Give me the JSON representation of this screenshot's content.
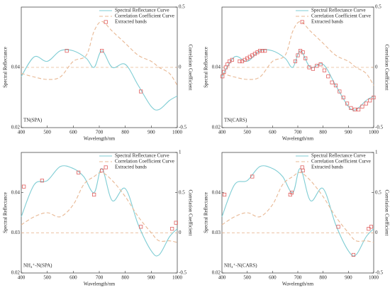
{
  "chart_data": [
    {
      "type": "line",
      "panel_label": "TN(SPA)",
      "xlabel": "Wavelength/nm",
      "ylabel": "Spectral Reflectance",
      "y2label": "Correlation Coefficient",
      "legend": "upper right",
      "x": [
        400,
        450,
        500,
        550,
        600,
        650,
        680,
        710,
        750,
        800,
        850,
        900,
        930,
        970,
        1000
      ],
      "xlim": [
        400,
        1000
      ],
      "xticks": [
        400,
        500,
        600,
        700,
        800,
        900,
        1000
      ],
      "ylim": [
        0.02,
        0.06
      ],
      "yticks": [
        0.02,
        0.04
      ],
      "y2lim": [
        -0.5,
        0.5
      ],
      "y2ticks": [
        -0.5,
        0,
        0.5
      ],
      "series": [
        {
          "name": "Spectral Reflectance Curve",
          "color": "#7fcdd4",
          "values": [
            0.037,
            0.0435,
            0.042,
            0.0455,
            0.0455,
            0.043,
            0.04,
            0.0455,
            0.04,
            0.041,
            0.034,
            0.027,
            0.026,
            0.029,
            0.0305
          ]
        },
        {
          "name": "Correlation Coefficient Curve",
          "color": "#e8b894",
          "axis": "y2",
          "values": [
            -0.05,
            -0.08,
            -0.1,
            -0.08,
            0.05,
            0.1,
            0.3,
            0.38,
            0.3,
            0.2,
            0.1,
            0.05,
            0.0,
            -0.05,
            -0.15
          ]
        },
        {
          "name": "Extracted bands",
          "color": "#e06060",
          "x": [
            575,
            710,
            860
          ],
          "values": [
            0.0455,
            0.0455,
            0.032
          ]
        }
      ]
    },
    {
      "type": "line",
      "panel_label": "TN(CARS)",
      "xlabel": "Wavelength/nm",
      "ylabel": "Spectral Reflectance",
      "y2label": "Correlation Coefficient",
      "legend": "upper right",
      "x": [
        400,
        450,
        500,
        550,
        600,
        650,
        680,
        710,
        750,
        800,
        850,
        900,
        930,
        970,
        1000
      ],
      "xlim": [
        400,
        1000
      ],
      "xticks": [
        400,
        500,
        600,
        700,
        800,
        900,
        1000
      ],
      "ylim": [
        0.02,
        0.06
      ],
      "yticks": [
        0.02,
        0.04
      ],
      "y2lim": [
        -0.5,
        0.5
      ],
      "y2ticks": [
        -0.5,
        0,
        0.5
      ],
      "series": [
        {
          "name": "Spectral Reflectance Curve",
          "color": "#7fcdd4",
          "values": [
            0.037,
            0.0435,
            0.042,
            0.0455,
            0.0455,
            0.043,
            0.04,
            0.0455,
            0.04,
            0.041,
            0.034,
            0.027,
            0.026,
            0.029,
            0.0305
          ]
        },
        {
          "name": "Correlation Coefficient Curve",
          "color": "#e8b894",
          "axis": "y2",
          "values": [
            -0.05,
            -0.08,
            -0.1,
            -0.08,
            0.05,
            0.1,
            0.3,
            0.38,
            0.3,
            0.2,
            0.1,
            0.05,
            0.0,
            -0.05,
            -0.15
          ]
        },
        {
          "name": "Extracted bands",
          "color": "#e06060",
          "x": [
            402,
            408,
            415,
            422,
            430,
            440,
            470,
            480,
            490,
            500,
            510,
            520,
            530,
            540,
            550,
            560,
            570,
            690,
            700,
            710,
            720,
            730,
            745,
            760,
            775,
            790,
            805,
            820,
            835,
            850,
            865,
            880,
            895,
            910,
            925,
            940,
            955,
            970,
            985,
            1000
          ],
          "values": [
            0.037,
            0.0385,
            0.04,
            0.041,
            0.042,
            0.0425,
            0.042,
            0.042,
            0.0425,
            0.043,
            0.0435,
            0.044,
            0.0445,
            0.045,
            0.0455,
            0.0455,
            0.0455,
            0.042,
            0.044,
            0.0455,
            0.045,
            0.043,
            0.04,
            0.0395,
            0.0405,
            0.041,
            0.039,
            0.037,
            0.035,
            0.034,
            0.032,
            0.03,
            0.028,
            0.0265,
            0.026,
            0.026,
            0.027,
            0.028,
            0.029,
            0.03
          ]
        }
      ]
    },
    {
      "type": "line",
      "panel_label": "NH₄⁺-N(SPA)",
      "xlabel": "Wavelength/nm",
      "ylabel": "Spectral Reflectance",
      "y2label": "Correlation Coefficient",
      "legend": "upper right",
      "x": [
        400,
        450,
        500,
        550,
        600,
        640,
        680,
        710,
        750,
        800,
        850,
        900,
        930,
        970,
        1000
      ],
      "xlim": [
        400,
        1000
      ],
      "xticks": [
        400,
        500,
        600,
        700,
        800,
        900,
        1000
      ],
      "ylim": [
        0.02,
        0.05
      ],
      "yticks": [
        0.02,
        0.03,
        0.04
      ],
      "y2lim": [
        -0.5,
        1
      ],
      "y2ticks": [
        -0.5,
        0,
        0.5,
        1
      ],
      "series": [
        {
          "name": "Spectral Reflectance Curve",
          "color": "#7fcdd4",
          "values": [
            0.034,
            0.042,
            0.043,
            0.0465,
            0.046,
            0.044,
            0.04,
            0.046,
            0.038,
            0.041,
            0.032,
            0.0255,
            0.0245,
            0.029,
            0.031
          ]
        },
        {
          "name": "Correlation Coefficient Curve",
          "color": "#e8b894",
          "axis": "y2",
          "values": [
            0.1,
            0.2,
            0.25,
            0.2,
            0.35,
            0.6,
            0.7,
            0.75,
            0.65,
            0.45,
            0.2,
            0.0,
            -0.1,
            -0.1,
            -0.12
          ]
        },
        {
          "name": "Extracted bands",
          "color": "#e06060",
          "x": [
            410,
            480,
            620,
            680,
            710,
            860,
            980,
            995
          ],
          "values": [
            0.0415,
            0.043,
            0.045,
            0.0395,
            0.0455,
            0.0315,
            0.031,
            0.0325
          ]
        }
      ]
    },
    {
      "type": "line",
      "panel_label": "NH₄⁺-N(CARS)",
      "xlabel": "Wavelength/nm",
      "ylabel": "Spectral Reflectance",
      "y2label": "Correlation Coefficient",
      "legend": "upper right",
      "x": [
        400,
        450,
        500,
        550,
        600,
        640,
        680,
        710,
        750,
        800,
        850,
        900,
        930,
        970,
        1000
      ],
      "xlim": [
        400,
        1000
      ],
      "xticks": [
        400,
        500,
        600,
        700,
        800,
        900,
        1000
      ],
      "ylim": [
        0.02,
        0.05
      ],
      "yticks": [
        0.02,
        0.03,
        0.04
      ],
      "y2lim": [
        -0.5,
        1
      ],
      "y2ticks": [
        -0.5,
        0,
        0.5,
        1
      ],
      "series": [
        {
          "name": "Spectral Reflectance Curve",
          "color": "#7fcdd4",
          "values": [
            0.034,
            0.042,
            0.043,
            0.0465,
            0.046,
            0.044,
            0.04,
            0.046,
            0.038,
            0.041,
            0.032,
            0.0255,
            0.0245,
            0.029,
            0.031
          ]
        },
        {
          "name": "Correlation Coefficient Curve",
          "color": "#e8b894",
          "axis": "y2",
          "values": [
            0.1,
            0.2,
            0.25,
            0.2,
            0.35,
            0.6,
            0.7,
            0.75,
            0.65,
            0.45,
            0.2,
            0.0,
            -0.1,
            -0.1,
            -0.12
          ]
        },
        {
          "name": "Extracted bands",
          "color": "#e06060",
          "x": [
            410,
            520,
            670,
            676,
            720,
            860,
            920,
            980,
            990
          ],
          "values": [
            0.0395,
            0.044,
            0.0395,
            0.04,
            0.0455,
            0.0315,
            0.0245,
            0.031,
            0.0315
          ]
        }
      ]
    }
  ]
}
